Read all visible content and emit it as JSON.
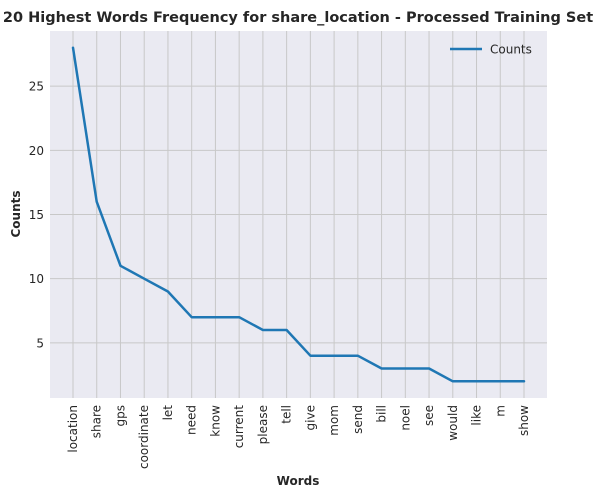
{
  "chart_data": {
    "type": "line",
    "title": "20 Highest Words Frequency for share_location - Processed Training Set",
    "xlabel": "Words",
    "ylabel": "Counts",
    "categories": [
      "location",
      "share",
      "gps",
      "coordinate",
      "let",
      "need",
      "know",
      "current",
      "please",
      "tell",
      "give",
      "mom",
      "send",
      "bill",
      "noel",
      "see",
      "would",
      "like",
      "m",
      "show"
    ],
    "series": [
      {
        "name": "Counts",
        "values": [
          28,
          16,
          11,
          10,
          9,
          7,
          7,
          7,
          6,
          6,
          4,
          4,
          4,
          3,
          3,
          3,
          2,
          2,
          2,
          2
        ]
      }
    ],
    "yticks": [
      5,
      10,
      15,
      20,
      25
    ],
    "ylim": [
      0.7,
      29.3
    ],
    "grid": true,
    "legend_position": "top-right",
    "colors": {
      "line": "#1f77b4",
      "background": "#eaeaf2",
      "grid": "#c8c8c8"
    }
  }
}
